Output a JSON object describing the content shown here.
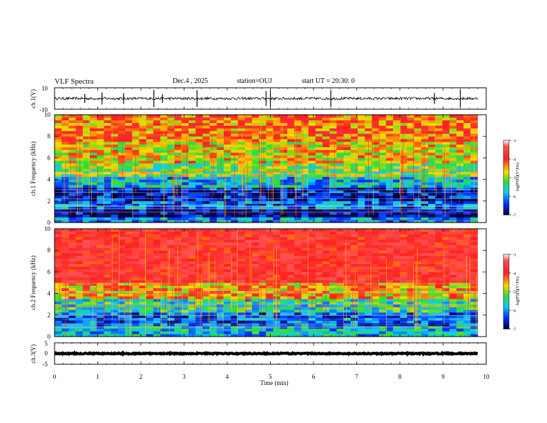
{
  "header": {
    "title": "VLF Spectra",
    "date": "Dec.4 , 2025",
    "station": "station=OUJ",
    "start_ut": "start UT =  20:30: 0"
  },
  "chart_data": [
    {
      "type": "line",
      "name": "ch1-waveform",
      "ylabel": "ch.1(V)",
      "ylim": [
        -10,
        10
      ],
      "yticks": [
        "10",
        "-10"
      ],
      "xlim": [
        0,
        10
      ],
      "baseline": 0,
      "noise_amplitude": 1.2,
      "spikes": [
        0.7,
        1.1,
        1.6,
        2.3,
        2.5,
        3.3,
        4.9,
        5.0,
        6.4,
        8.8,
        9.4
      ]
    },
    {
      "type": "heatmap",
      "name": "ch1-spectrogram",
      "ylabel": "ch.1 Frequency (kHz)",
      "ylim": [
        0,
        10
      ],
      "yticks": [
        "0",
        "2",
        "4",
        "6",
        "8",
        "10"
      ],
      "xlim": [
        0,
        9.8
      ],
      "colorbar": {
        "label": "log(PSD)(V²/Hz)",
        "range": [
          -7,
          -3
        ],
        "ticks": [
          "-3",
          "-4",
          "-5",
          "-6",
          "-7"
        ]
      },
      "bands": [
        {
          "f0": 0,
          "f1": 0.6,
          "value": -6.0
        },
        {
          "f0": 0.6,
          "f1": 1.2,
          "value": -6.8
        },
        {
          "f0": 1.2,
          "f1": 2.0,
          "value": -6.2
        },
        {
          "f0": 2.0,
          "f1": 3.2,
          "value": -6.6
        },
        {
          "f0": 3.2,
          "f1": 4.2,
          "value": -5.8
        },
        {
          "f0": 4.2,
          "f1": 5.6,
          "value": -5.1
        },
        {
          "f0": 5.6,
          "f1": 7.5,
          "value": -4.7
        },
        {
          "f0": 7.5,
          "f1": 10,
          "value": -4.3
        }
      ]
    },
    {
      "type": "heatmap",
      "name": "ch2-spectrogram",
      "ylabel": "ch.2 Frequency (kHz)",
      "ylim": [
        0,
        10
      ],
      "yticks": [
        "0",
        "2",
        "4",
        "6",
        "8",
        "10"
      ],
      "xlim": [
        0,
        9.8
      ],
      "colorbar": {
        "label": "log(PSD)(V²/Hz)",
        "range": [
          -7,
          -3
        ],
        "ticks": [
          "-3",
          "-4",
          "-5",
          "-6",
          "-7"
        ]
      },
      "bands": [
        {
          "f0": 0,
          "f1": 1.0,
          "value": -5.8
        },
        {
          "f0": 1.0,
          "f1": 2.2,
          "value": -6.2
        },
        {
          "f0": 2.2,
          "f1": 3.6,
          "value": -5.5
        },
        {
          "f0": 3.6,
          "f1": 5.0,
          "value": -4.5
        },
        {
          "f0": 5.0,
          "f1": 10,
          "value": -3.6
        }
      ]
    },
    {
      "type": "line",
      "name": "ch3-waveform",
      "ylabel": "ch.3(V)",
      "ylim": [
        -5,
        5
      ],
      "yticks": [
        "5",
        "0",
        "-5"
      ],
      "xlim": [
        0,
        10
      ],
      "xlabel": "Time (min)",
      "xticks": [
        "0",
        "1",
        "2",
        "3",
        "4",
        "5",
        "6",
        "7",
        "8",
        "9",
        "10"
      ],
      "baseline": 0,
      "noise_amplitude": 0.25
    }
  ]
}
